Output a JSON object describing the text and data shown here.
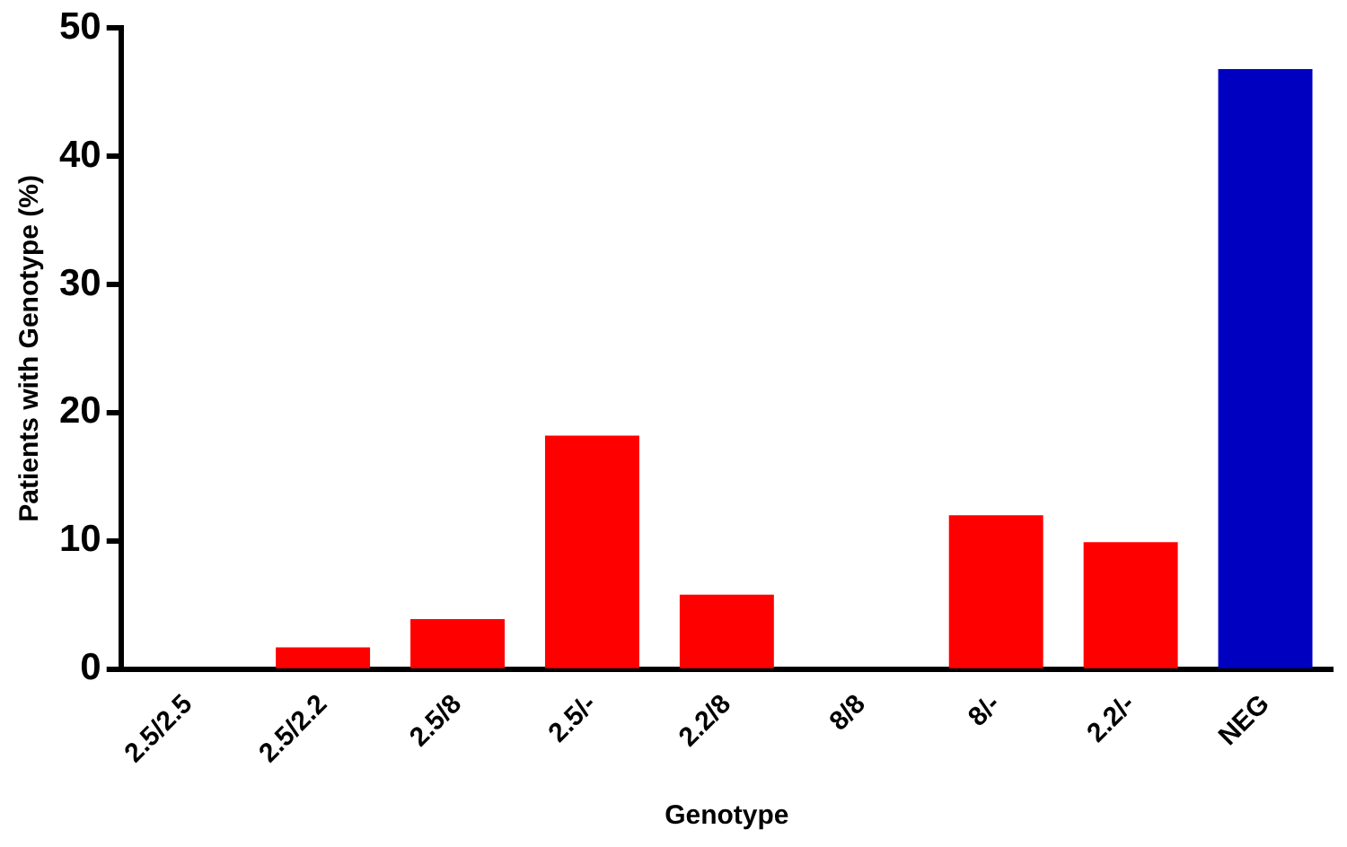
{
  "chart_data": {
    "type": "bar",
    "xlabel": "Genotype",
    "ylabel": "Patients with Genotype (%)",
    "categories": [
      "2.5/2.5",
      "2.5/2.2",
      "2.5/8",
      "2.5/-",
      "2.2/8",
      "8/8",
      "8/-",
      "2.2/-",
      "NEG"
    ],
    "values": [
      0,
      1.7,
      3.9,
      18.2,
      5.8,
      0,
      12.0,
      9.9,
      46.8
    ],
    "colors": [
      "#ff0000",
      "#ff0000",
      "#ff0000",
      "#ff0000",
      "#ff0000",
      "#ff0000",
      "#ff0000",
      "#ff0000",
      "#0000c0"
    ],
    "ylim": [
      0,
      50
    ],
    "yticks": [
      0,
      10,
      20,
      30,
      40,
      50
    ],
    "grid": false,
    "legend": false
  }
}
